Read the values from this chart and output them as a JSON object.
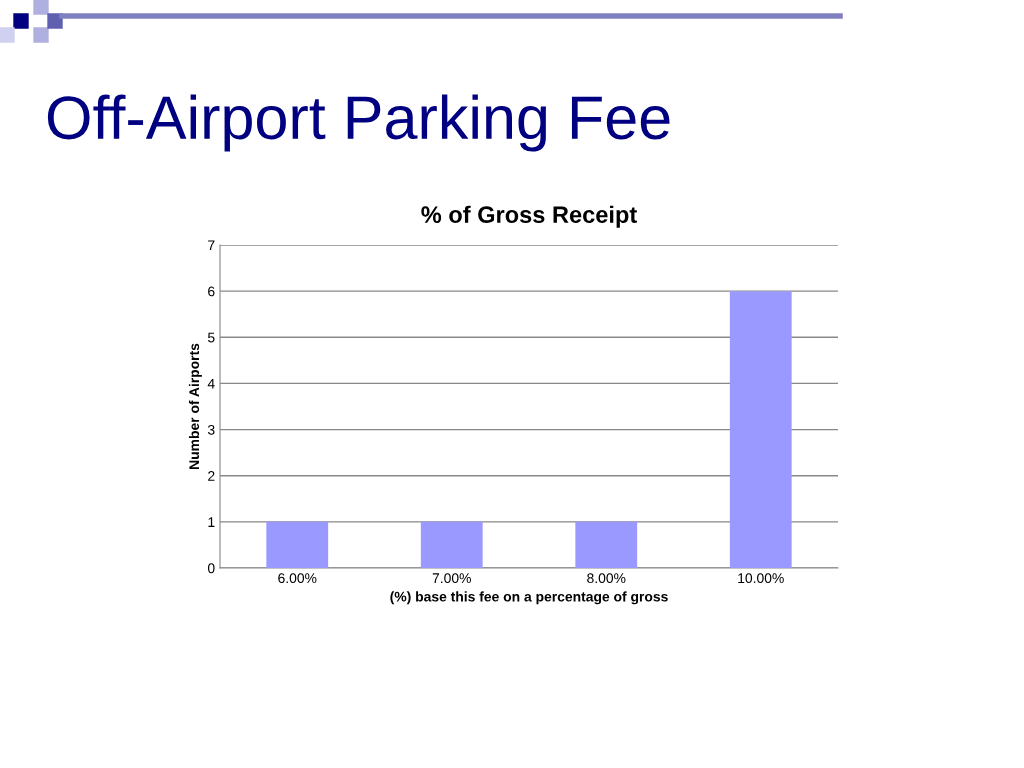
{
  "chart_data": {
    "type": "bar",
    "title": "Off-Airport Parking Fee",
    "subtitle": "% of Gross Receipt",
    "xlabel": "(%) base this fee on a percentage of gross",
    "ylabel": "Number of Airports",
    "categories": [
      "6.00%",
      "7.00%",
      "8.00%",
      "10.00%"
    ],
    "values": [
      1,
      1,
      1,
      6
    ],
    "color": "#9999ff",
    "ylim": [
      0,
      7
    ],
    "yticks": [
      0,
      1,
      2,
      3,
      4,
      5,
      6,
      7
    ],
    "grid": "y",
    "legend": false
  }
}
